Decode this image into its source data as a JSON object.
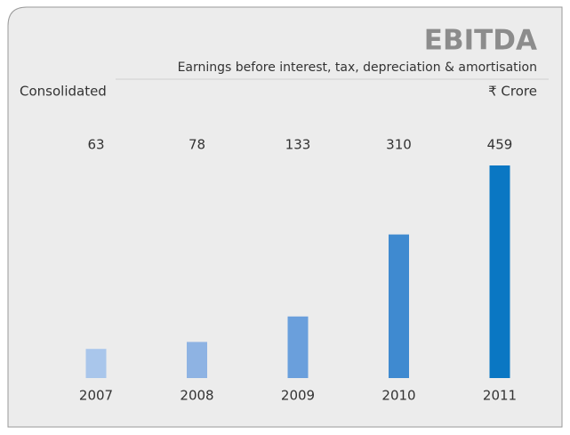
{
  "chart_data": {
    "type": "bar",
    "title": "EBITDA",
    "subtitle": "Earnings before interest, tax, depreciation & amortisation",
    "left_note": "Consolidated",
    "unit": "₹ Crore",
    "categories": [
      "2007",
      "2008",
      "2009",
      "2010",
      "2011"
    ],
    "values": [
      63,
      78,
      133,
      310,
      459
    ],
    "colors": [
      "#a9c6eb",
      "#8eb3e3",
      "#6a9fdc",
      "#3f8ad0",
      "#0a77c3"
    ]
  }
}
